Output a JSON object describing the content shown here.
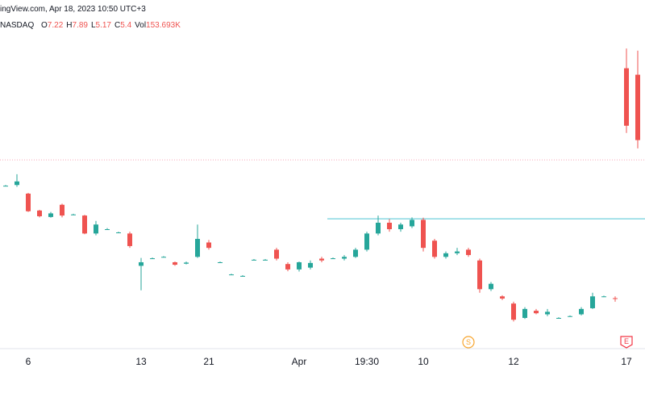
{
  "chart_data": {
    "type": "candlestick",
    "header": {
      "source": "ingView.com, Apr 18, 2023 10:50 UTC+3",
      "exchange": "NASDAQ"
    },
    "ohlc_keys": [
      "O",
      "H",
      "L",
      "C",
      "Vol"
    ],
    "volume_label": "153.693K",
    "up_color": "#26a69a",
    "down_color": "#ef5350",
    "ylim": [
      0,
      9.3
    ],
    "categories": [
      null,
      null,
      "6",
      null,
      null,
      null,
      null,
      null,
      null,
      null,
      null,
      null,
      "13",
      null,
      null,
      null,
      null,
      null,
      "21",
      null,
      null,
      null,
      null,
      null,
      null,
      null,
      "Apr",
      null,
      null,
      null,
      null,
      null,
      "19:30",
      null,
      null,
      null,
      null,
      "10",
      null,
      null,
      null,
      null,
      null,
      null,
      null,
      "12",
      null,
      null,
      null,
      null,
      null,
      null,
      null,
      null,
      null,
      "17",
      null
    ],
    "open": [
      4.13,
      4.15,
      3.91,
      3.44,
      3.26,
      3.6,
      3.33,
      3.3,
      2.8,
      2.92,
      2.83,
      2.8,
      1.9,
      2.11,
      2.15,
      2.0,
      1.96,
      2.15,
      2.55,
      2.0,
      1.66,
      1.62,
      2.07,
      2.07,
      2.35,
      1.95,
      1.8,
      1.85,
      2.1,
      2.11,
      2.1,
      2.15,
      2.35,
      2.8,
      3.1,
      2.92,
      3.0,
      3.18,
      2.6,
      2.15,
      2.25,
      2.35,
      2.05,
      1.25,
      1.05,
      0.85,
      0.45,
      0.65,
      0.55,
      0.45,
      0.5,
      0.55,
      0.72,
      1.05,
      1.0,
      7.4,
      7.22
    ],
    "high": [
      4.15,
      4.45,
      3.93,
      3.46,
      3.4,
      3.63,
      3.35,
      3.32,
      3.15,
      2.95,
      2.85,
      2.85,
      2.12,
      2.13,
      2.17,
      2.02,
      2.02,
      3.05,
      2.62,
      2.02,
      1.68,
      1.64,
      2.09,
      2.09,
      2.4,
      2.0,
      2.02,
      2.05,
      2.15,
      2.13,
      2.2,
      2.4,
      2.85,
      3.3,
      3.2,
      3.1,
      3.25,
      3.24,
      2.65,
      2.3,
      2.4,
      2.4,
      2.1,
      1.45,
      1.08,
      0.9,
      0.75,
      0.7,
      0.7,
      0.47,
      0.52,
      0.75,
      1.15,
      1.07,
      1.05,
      7.95,
      7.89
    ],
    "low": [
      4.11,
      4.1,
      3.4,
      3.25,
      3.24,
      3.25,
      3.31,
      2.78,
      2.75,
      2.9,
      2.81,
      2.4,
      1.22,
      2.09,
      2.13,
      1.9,
      1.94,
      2.12,
      2.35,
      1.98,
      1.64,
      1.6,
      2.05,
      2.05,
      2.05,
      1.75,
      1.74,
      1.8,
      2.0,
      2.09,
      2.05,
      2.12,
      2.3,
      2.75,
      2.85,
      2.85,
      2.95,
      2.3,
      2.1,
      2.1,
      2.2,
      2.15,
      1.15,
      1.2,
      0.95,
      0.35,
      0.42,
      0.55,
      0.5,
      0.43,
      0.48,
      0.52,
      0.7,
      1.03,
      0.9,
      5.6,
      5.17
    ],
    "close": [
      4.13,
      4.25,
      3.42,
      3.28,
      3.36,
      3.3,
      3.33,
      2.8,
      3.05,
      2.92,
      2.83,
      2.45,
      2.0,
      2.11,
      2.15,
      1.93,
      1.99,
      2.65,
      2.4,
      2.0,
      1.66,
      1.62,
      2.07,
      2.07,
      2.1,
      1.8,
      2.0,
      1.98,
      2.05,
      2.11,
      2.15,
      2.35,
      2.8,
      3.1,
      2.92,
      3.05,
      3.18,
      2.4,
      2.15,
      2.25,
      2.3,
      2.2,
      1.25,
      1.4,
      0.99,
      0.4,
      0.7,
      0.58,
      0.62,
      0.45,
      0.5,
      0.7,
      1.05,
      1.05,
      0.98,
      5.8,
      5.4
    ],
    "price_lines": [
      {
        "value": 4.85,
        "color": "#f7a8b8",
        "style": "dotted",
        "start": 0
      },
      {
        "value": 3.21,
        "color": "#4dc4d4",
        "style": "solid",
        "start": 29
      }
    ],
    "events": [
      {
        "label": "S",
        "index": 41,
        "color": "#f7a52e"
      },
      {
        "label": "E",
        "index": 55,
        "color": "#f23645"
      }
    ]
  }
}
